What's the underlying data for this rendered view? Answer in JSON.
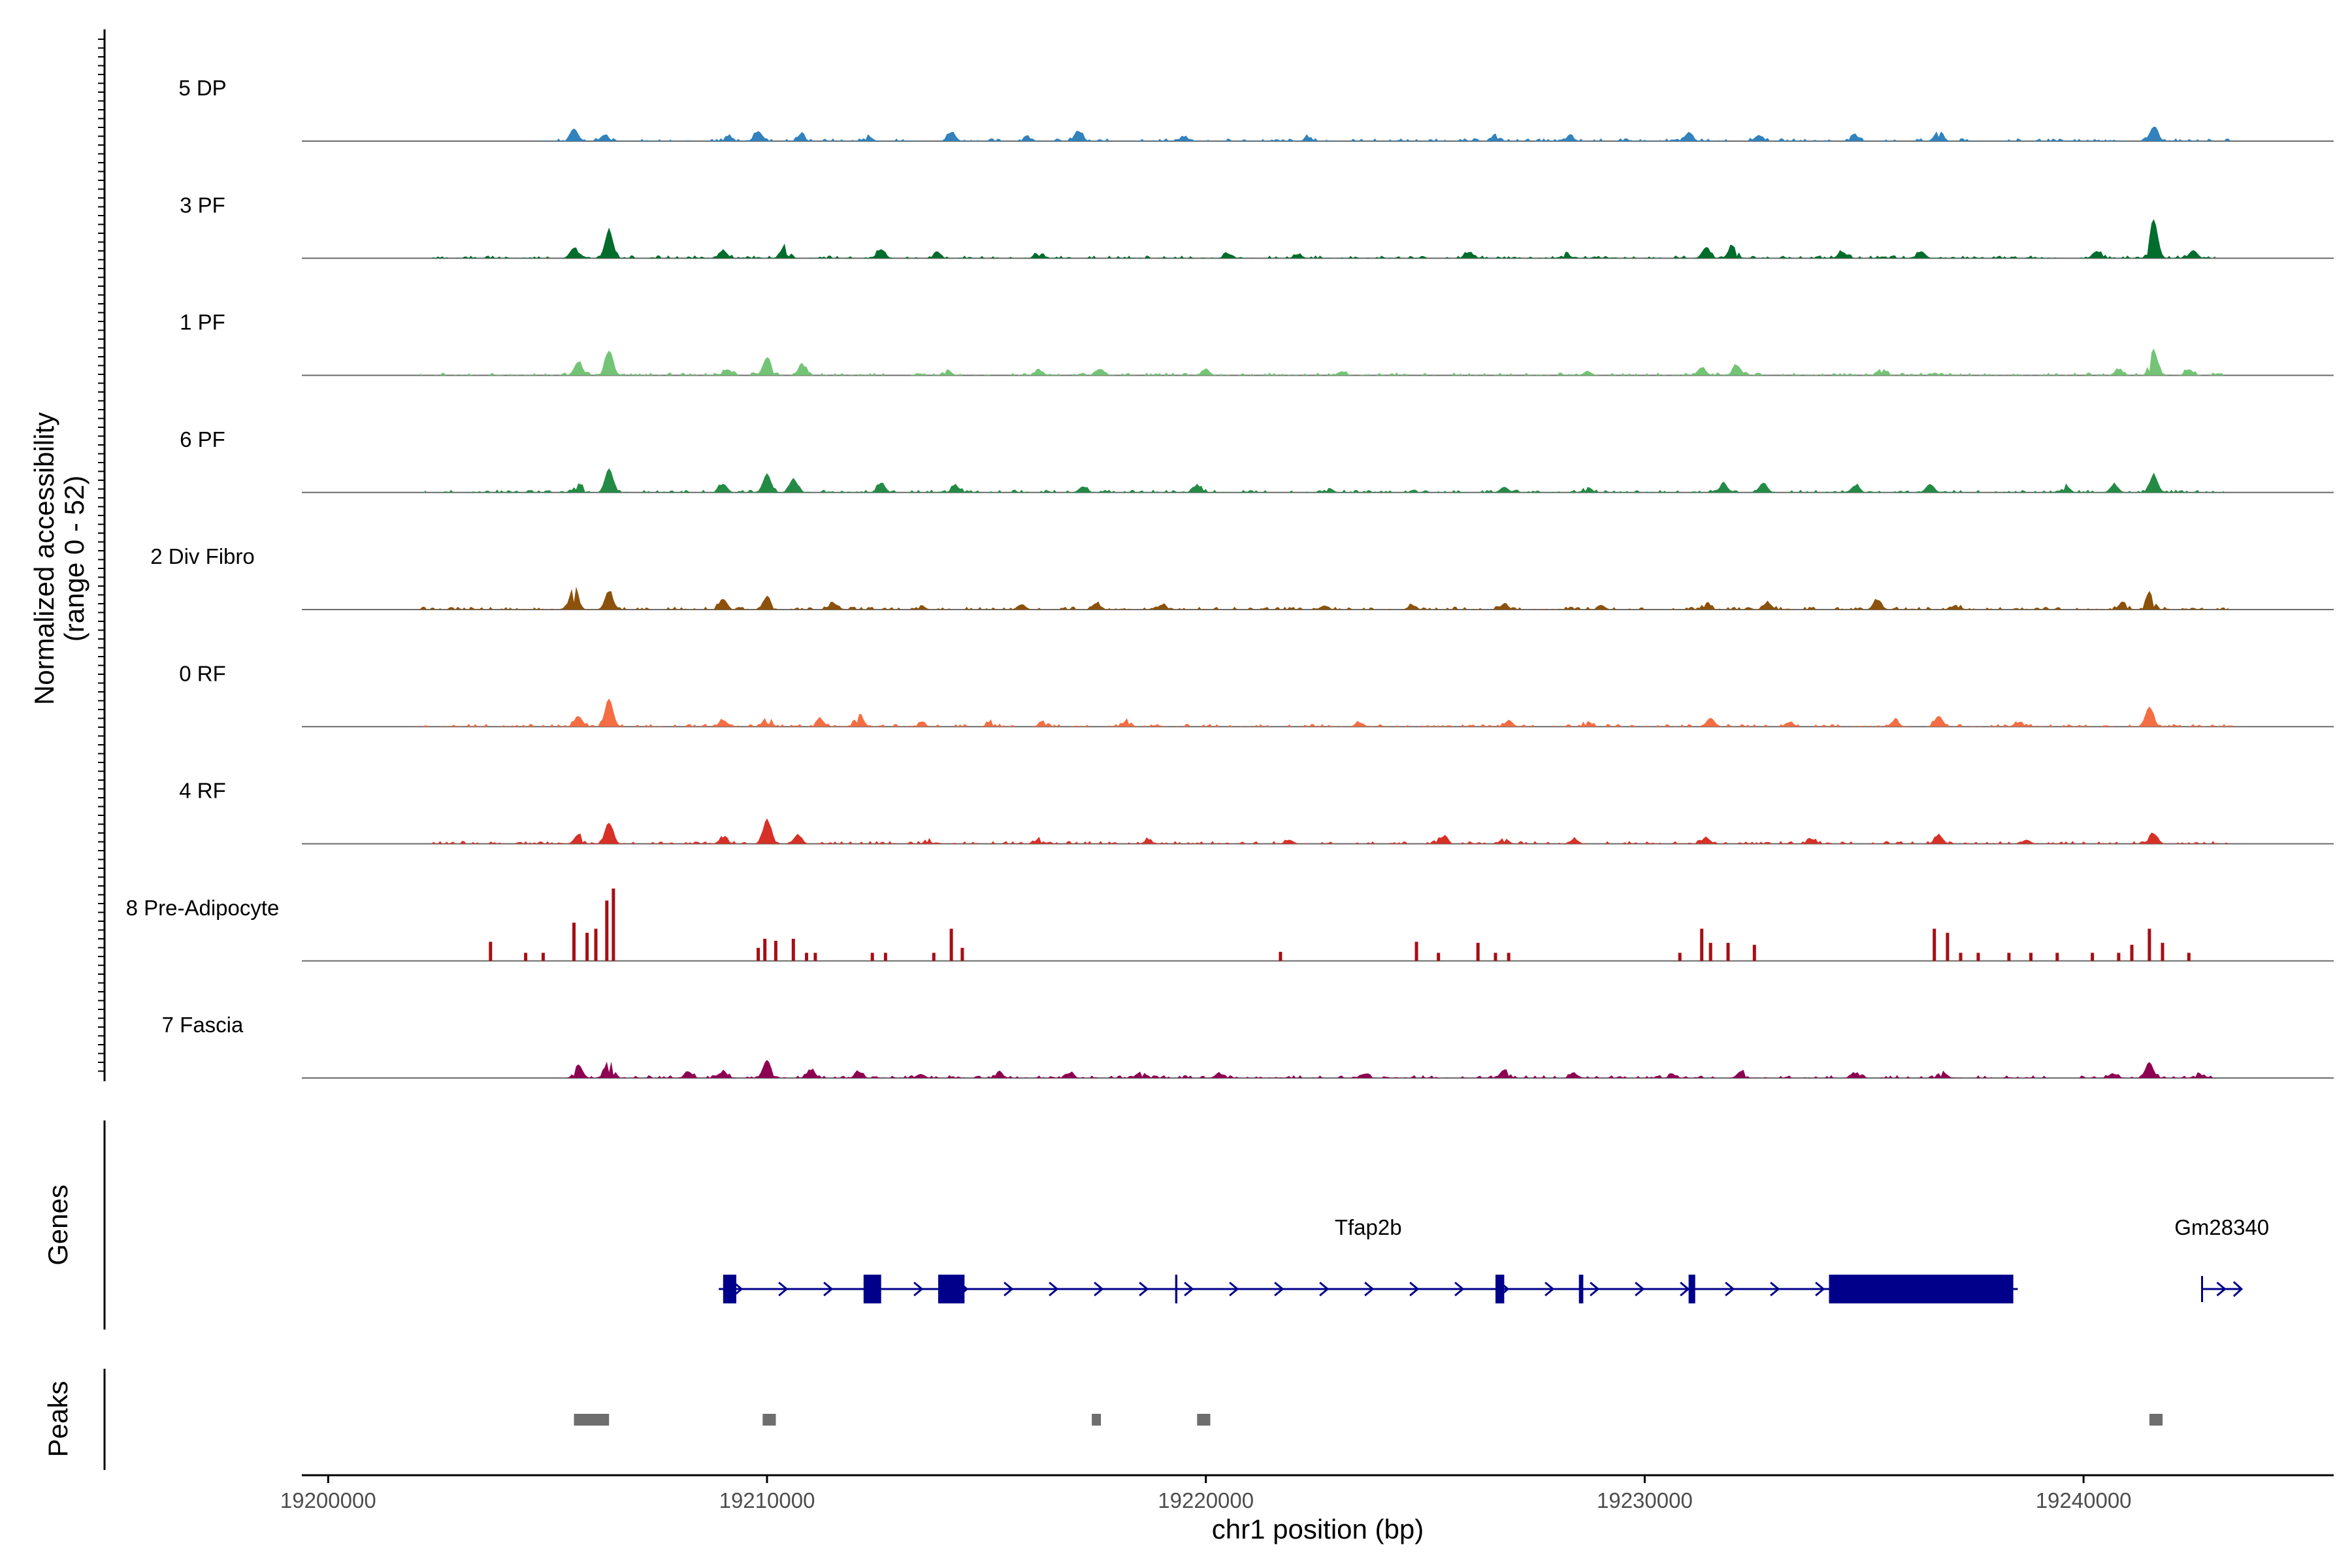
{
  "chart_data": {
    "type": "genome-coverage",
    "region": {
      "chrom": "chr1",
      "start": 19199400,
      "end": 19245700
    },
    "xlabel": "chr1 position (bp)",
    "x_ticks": [
      19200000,
      19210000,
      19220000,
      19230000,
      19240000
    ],
    "x_tick_labels": [
      "19200000",
      "19210000",
      "19220000",
      "19230000",
      "19240000"
    ],
    "ylabel_line1": "Normalized accessibility",
    "ylabel_line2": "(range 0 - 52)",
    "y_range": [
      0,
      52
    ],
    "tracks": [
      {
        "name": "5 DP",
        "color": "#3182BD",
        "peaks": [
          [
            19205600,
            6.3
          ],
          [
            19206300,
            3.2
          ],
          [
            19209100,
            2.5
          ],
          [
            19209800,
            5.0
          ],
          [
            19210800,
            4.0
          ],
          [
            19212300,
            2.6
          ],
          [
            19214200,
            4.5
          ],
          [
            19215900,
            2.4
          ],
          [
            19217100,
            5.0
          ],
          [
            19219500,
            2.2
          ],
          [
            19222300,
            2.1
          ],
          [
            19226600,
            3.0
          ],
          [
            19228300,
            2.3
          ],
          [
            19231000,
            4.0
          ],
          [
            19232600,
            2.9
          ],
          [
            19234800,
            2.6
          ],
          [
            19236700,
            5.5
          ],
          [
            19241600,
            7.2
          ]
        ],
        "extent": [
          19204600,
          19243400
        ]
      },
      {
        "name": "3 PF",
        "color": "#006D2C",
        "peaks": [
          [
            19205600,
            5.2
          ],
          [
            19206400,
            14.0
          ],
          [
            19209000,
            3.9
          ],
          [
            19210400,
            6.0
          ],
          [
            19212600,
            4.5
          ],
          [
            19213900,
            2.4
          ],
          [
            19216200,
            2.6
          ],
          [
            19220500,
            2.2
          ],
          [
            19222100,
            2.0
          ],
          [
            19226000,
            3.1
          ],
          [
            19228200,
            2.3
          ],
          [
            19231400,
            5.5
          ],
          [
            19232000,
            6.4
          ],
          [
            19234500,
            3.2
          ],
          [
            19236300,
            3.5
          ],
          [
            19240300,
            3.6
          ],
          [
            19241600,
            19.0
          ],
          [
            19242500,
            4.0
          ]
        ],
        "extent": [
          19202200,
          19243000
        ]
      },
      {
        "name": "1 PF",
        "color": "#74C476",
        "peaks": [
          [
            19205700,
            6.8
          ],
          [
            19206400,
            12.2
          ],
          [
            19209100,
            3.0
          ],
          [
            19210000,
            9.0
          ],
          [
            19210800,
            5.2
          ],
          [
            19214100,
            3.0
          ],
          [
            19216200,
            2.5
          ],
          [
            19217600,
            3.2
          ],
          [
            19220000,
            2.8
          ],
          [
            19223100,
            2.0
          ],
          [
            19228700,
            2.0
          ],
          [
            19231300,
            4.0
          ],
          [
            19232100,
            5.1
          ],
          [
            19235400,
            3.7
          ],
          [
            19240800,
            3.0
          ],
          [
            19241600,
            12.1
          ],
          [
            19242400,
            3.0
          ]
        ],
        "extent": [
          19202100,
          19243200
        ]
      },
      {
        "name": "6 PF",
        "color": "#238B45",
        "peaks": [
          [
            19205700,
            4.6
          ],
          [
            19206400,
            12.0
          ],
          [
            19209000,
            4.3
          ],
          [
            19210000,
            9.2
          ],
          [
            19210600,
            6.8
          ],
          [
            19212600,
            4.7
          ],
          [
            19214300,
            3.2
          ],
          [
            19217200,
            3.0
          ],
          [
            19219800,
            3.5
          ],
          [
            19222800,
            2.3
          ],
          [
            19226800,
            2.8
          ],
          [
            19228700,
            2.5
          ],
          [
            19231800,
            4.2
          ],
          [
            19232700,
            4.8
          ],
          [
            19234800,
            3.5
          ],
          [
            19236500,
            4.2
          ],
          [
            19239600,
            3.2
          ],
          [
            19240700,
            4.0
          ],
          [
            19241600,
            8.7
          ]
        ],
        "extent": [
          19202200,
          19243200
        ]
      },
      {
        "name": "2 Div Fibro",
        "color": "#8C510A",
        "peaks": [
          [
            19205600,
            12.0
          ],
          [
            19206400,
            9.0
          ],
          [
            19209000,
            5.3
          ],
          [
            19210000,
            6.2
          ],
          [
            19211500,
            2.9
          ],
          [
            19213500,
            2.2
          ],
          [
            19215800,
            2.6
          ],
          [
            19217500,
            3.2
          ],
          [
            19219000,
            2.4
          ],
          [
            19222700,
            2.0
          ],
          [
            19224700,
            2.1
          ],
          [
            19226800,
            2.7
          ],
          [
            19229000,
            2.3
          ],
          [
            19231400,
            3.2
          ],
          [
            19232800,
            3.5
          ],
          [
            19235300,
            4.8
          ],
          [
            19237100,
            2.4
          ],
          [
            19240900,
            4.0
          ],
          [
            19241500,
            8.5
          ]
        ],
        "extent": [
          19202000,
          19243300
        ]
      },
      {
        "name": "0 RF",
        "color": "#F46D43",
        "peaks": [
          [
            19205700,
            5.3
          ],
          [
            19206400,
            13.8
          ],
          [
            19209000,
            3.3
          ],
          [
            19210000,
            5.0
          ],
          [
            19211200,
            4.2
          ],
          [
            19212100,
            6.4
          ],
          [
            19213500,
            2.4
          ],
          [
            19215100,
            2.3
          ],
          [
            19216300,
            3.1
          ],
          [
            19218200,
            3.0
          ],
          [
            19223500,
            2.1
          ],
          [
            19226900,
            2.9
          ],
          [
            19228700,
            2.7
          ],
          [
            19231500,
            4.4
          ],
          [
            19233300,
            2.3
          ],
          [
            19235700,
            3.0
          ],
          [
            19236700,
            5.4
          ],
          [
            19238500,
            2.0
          ],
          [
            19241500,
            10.0
          ]
        ],
        "extent": [
          19202000,
          19243400
        ]
      },
      {
        "name": "4 RF",
        "color": "#D73027",
        "peaks": [
          [
            19205700,
            4.6
          ],
          [
            19206400,
            10.5
          ],
          [
            19209000,
            3.2
          ],
          [
            19210000,
            12.0
          ],
          [
            19210700,
            4.4
          ],
          [
            19213700,
            2.6
          ],
          [
            19216200,
            2.2
          ],
          [
            19218700,
            2.2
          ],
          [
            19221900,
            2.0
          ],
          [
            19225400,
            3.5
          ],
          [
            19226800,
            2.9
          ],
          [
            19228400,
            2.3
          ],
          [
            19231400,
            3.0
          ],
          [
            19233800,
            2.4
          ],
          [
            19236700,
            4.4
          ],
          [
            19238700,
            2.0
          ],
          [
            19241600,
            5.0
          ]
        ],
        "extent": [
          19202100,
          19243300
        ]
      },
      {
        "name": "8 Pre-Adipocyte",
        "color": "#A50F15",
        "bars": [
          [
            19203700,
            9.5
          ],
          [
            19204500,
            4.0
          ],
          [
            19204900,
            4.0
          ],
          [
            19205600,
            19.0
          ],
          [
            19205900,
            14.0
          ],
          [
            19206100,
            16.0
          ],
          [
            19206350,
            30.0
          ],
          [
            19206500,
            36.0
          ],
          [
            19209800,
            6.5
          ],
          [
            19209950,
            11.0
          ],
          [
            19210200,
            10.0
          ],
          [
            19210600,
            11.0
          ],
          [
            19210900,
            4.0
          ],
          [
            19211100,
            4.0
          ],
          [
            19212400,
            4.0
          ],
          [
            19212700,
            4.0
          ],
          [
            19213800,
            4.0
          ],
          [
            19214200,
            16.0
          ],
          [
            19214450,
            6.5
          ],
          [
            19221700,
            4.5
          ],
          [
            19224800,
            9.5
          ],
          [
            19225300,
            4.0
          ],
          [
            19226200,
            9.0
          ],
          [
            19226600,
            4.0
          ],
          [
            19226900,
            4.0
          ],
          [
            19230800,
            4.0
          ],
          [
            19231300,
            16.0
          ],
          [
            19231500,
            9.0
          ],
          [
            19231900,
            9.0
          ],
          [
            19232500,
            8.0
          ],
          [
            19236600,
            16.0
          ],
          [
            19236900,
            14.0
          ],
          [
            19237200,
            4.0
          ],
          [
            19237600,
            4.0
          ],
          [
            19238300,
            4.0
          ],
          [
            19238800,
            4.0
          ],
          [
            19239400,
            4.0
          ],
          [
            19240200,
            4.0
          ],
          [
            19240800,
            4.0
          ],
          [
            19241100,
            8.0
          ],
          [
            19241500,
            16.0
          ],
          [
            19241800,
            9.0
          ],
          [
            19242400,
            4.0
          ]
        ],
        "extent": [
          19203500,
          19242600
        ]
      },
      {
        "name": "7 Fascia",
        "color": "#8E0152",
        "peaks": [
          [
            19205700,
            6.8
          ],
          [
            19206400,
            9.5
          ],
          [
            19208200,
            3.3
          ],
          [
            19209000,
            3.0
          ],
          [
            19210000,
            9.0
          ],
          [
            19211000,
            4.0
          ],
          [
            19212100,
            3.0
          ],
          [
            19213500,
            2.0
          ],
          [
            19215300,
            2.3
          ],
          [
            19216900,
            2.5
          ],
          [
            19218500,
            2.7
          ],
          [
            19220300,
            2.2
          ],
          [
            19223600,
            2.0
          ],
          [
            19226800,
            4.2
          ],
          [
            19228400,
            2.0
          ],
          [
            19230600,
            2.4
          ],
          [
            19232200,
            3.5
          ],
          [
            19234800,
            2.3
          ],
          [
            19236800,
            2.8
          ],
          [
            19240700,
            2.0
          ],
          [
            19241500,
            7.3
          ],
          [
            19242600,
            2.0
          ]
        ],
        "extent": [
          19205200,
          19243000
        ]
      }
    ],
    "genes_track_label": "Genes",
    "genes": [
      {
        "name": "Tfap2b",
        "color": "#00008B",
        "strand": "+",
        "start": 19208900,
        "end": 19238500,
        "exons": [
          [
            19209000,
            19209300,
            "thick"
          ],
          [
            19212200,
            19212600,
            "thick"
          ],
          [
            19213900,
            19214500,
            "thick"
          ],
          [
            19219300,
            19219350,
            "thin"
          ],
          [
            19226600,
            19226800,
            "thick"
          ],
          [
            19228500,
            19228600,
            "thick"
          ],
          [
            19231000,
            19231150,
            "thick"
          ],
          [
            19234200,
            19238400,
            "thick"
          ]
        ]
      },
      {
        "name": "Gm28340",
        "color": "#00008B",
        "strand": "+",
        "start": 19242700,
        "end": 19243600,
        "exons": []
      }
    ],
    "peaks_track_label": "Peaks",
    "peak_regions": [
      [
        19205600,
        19206400
      ],
      [
        19209900,
        19210200
      ],
      [
        19217400,
        19217600
      ],
      [
        19219800,
        19220100
      ],
      [
        19241500,
        19241800
      ]
    ],
    "peak_color": "#6E6E6E"
  }
}
